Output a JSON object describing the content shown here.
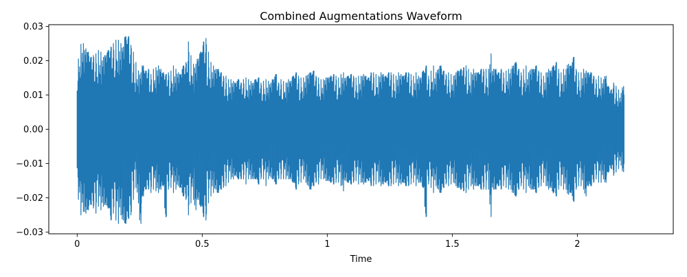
{
  "chart_data": {
    "type": "line",
    "title": "Combined Augmentations Waveform",
    "xlabel": "Time",
    "ylabel": "",
    "xlim": [
      -0.1135,
      2.3835
    ],
    "ylim": [
      -0.0305,
      0.0305
    ],
    "x_ticks": [
      0,
      0.5,
      1,
      1.5,
      2
    ],
    "x_tick_labels": [
      "0",
      "0.5",
      "1",
      "1.5",
      "2"
    ],
    "y_ticks": [
      -0.03,
      -0.02,
      -0.01,
      0.0,
      0.01,
      0.02,
      0.03
    ],
    "y_tick_labels": [
      "−0.03",
      "−0.02",
      "−0.01",
      "0.00",
      "0.01",
      "0.02",
      "0.03"
    ],
    "grid": false,
    "series": [
      {
        "color": "#1f77b4",
        "sample_spacing": 0.01,
        "envelope_max": [
          0.0205,
          0.0248,
          0.025,
          0.0235,
          0.0225,
          0.021,
          0.0215,
          0.022,
          0.023,
          0.0225,
          0.021,
          0.0215,
          0.023,
          0.024,
          0.025,
          0.026,
          0.026,
          0.025,
          0.024,
          0.027,
          0.027,
          0.0245,
          0.0225,
          0.0195,
          0.017,
          0.0165,
          0.0185,
          0.017,
          0.0175,
          0.016,
          0.0175,
          0.018,
          0.0185,
          0.0175,
          0.0165,
          0.016,
          0.0165,
          0.017,
          0.0185,
          0.0175,
          0.0165,
          0.016,
          0.0185,
          0.0195,
          0.0255,
          0.0215,
          0.019,
          0.019,
          0.0205,
          0.0225,
          0.0255,
          0.0265,
          0.0225,
          0.0195,
          0.0185,
          0.0175,
          0.0175,
          0.0165,
          0.0155,
          0.0155,
          0.0145,
          0.0145,
          0.014,
          0.0135,
          0.0145,
          0.0135,
          0.0145,
          0.015,
          0.0145,
          0.014,
          0.0135,
          0.0145,
          0.015,
          0.0135,
          0.014,
          0.0145,
          0.014,
          0.0135,
          0.0145,
          0.016,
          0.0135,
          0.0145,
          0.014,
          0.0135,
          0.0145,
          0.014,
          0.0155,
          0.0165,
          0.0155,
          0.015,
          0.015,
          0.0155,
          0.016,
          0.0165,
          0.017,
          0.0155,
          0.015,
          0.0145,
          0.0145,
          0.015,
          0.015,
          0.0155,
          0.016,
          0.0155,
          0.015,
          0.016,
          0.0165,
          0.015,
          0.0155,
          0.016,
          0.0155,
          0.015,
          0.0155,
          0.0155,
          0.016,
          0.0155,
          0.015,
          0.0165,
          0.0165,
          0.016,
          0.0155,
          0.0165,
          0.016,
          0.0155,
          0.0165,
          0.0165,
          0.016,
          0.0155,
          0.0165,
          0.016,
          0.0155,
          0.0165,
          0.0165,
          0.016,
          0.0155,
          0.0165,
          0.0155,
          0.015,
          0.017,
          0.0185,
          0.0155,
          0.017,
          0.0185,
          0.0165,
          0.0175,
          0.0185,
          0.017,
          0.016,
          0.0165,
          0.016,
          0.0155,
          0.0165,
          0.017,
          0.0175,
          0.018,
          0.0185,
          0.0175,
          0.0165,
          0.0175,
          0.0165,
          0.0165,
          0.0175,
          0.0175,
          0.0175,
          0.0175,
          0.022,
          0.0175,
          0.0175,
          0.0165,
          0.0175,
          0.0165,
          0.017,
          0.0175,
          0.0175,
          0.0185,
          0.0195,
          0.0175,
          0.0165,
          0.0175,
          0.0185,
          0.0165,
          0.0175,
          0.0175,
          0.0185,
          0.017,
          0.0165,
          0.0155,
          0.0165,
          0.0175,
          0.017,
          0.0185,
          0.0195,
          0.0175,
          0.0165,
          0.0175,
          0.0175,
          0.019,
          0.0185,
          0.021,
          0.0175,
          0.0165,
          0.0165,
          0.0175,
          0.017,
          0.0165,
          0.0165,
          0.0155,
          0.0145,
          0.0155,
          0.015,
          0.0145,
          0.0155,
          0.0125,
          0.0115,
          0.0135,
          0.0125,
          0.0115,
          0.0105,
          0.0125
        ],
        "envelope_min": [
          -0.0205,
          -0.025,
          -0.024,
          -0.0245,
          -0.0235,
          -0.022,
          -0.023,
          -0.0245,
          -0.0225,
          -0.0235,
          -0.0225,
          -0.022,
          -0.023,
          -0.0265,
          -0.0245,
          -0.0265,
          -0.0275,
          -0.025,
          -0.0265,
          -0.0275,
          -0.026,
          -0.025,
          -0.0205,
          -0.017,
          -0.0215,
          -0.0275,
          -0.0195,
          -0.0175,
          -0.0175,
          -0.0185,
          -0.0175,
          -0.018,
          -0.0185,
          -0.0175,
          -0.0165,
          -0.0255,
          -0.0175,
          -0.017,
          -0.0185,
          -0.0175,
          -0.0165,
          -0.017,
          -0.0195,
          -0.0205,
          -0.025,
          -0.0215,
          -0.0205,
          -0.0235,
          -0.0205,
          -0.0225,
          -0.0255,
          -0.0265,
          -0.0215,
          -0.0195,
          -0.0185,
          -0.0175,
          -0.0185,
          -0.0175,
          -0.017,
          -0.0165,
          -0.0155,
          -0.0145,
          -0.0145,
          -0.0135,
          -0.0145,
          -0.0145,
          -0.0145,
          -0.016,
          -0.0145,
          -0.0145,
          -0.0145,
          -0.0145,
          -0.016,
          -0.0145,
          -0.0145,
          -0.0165,
          -0.0145,
          -0.014,
          -0.0145,
          -0.016,
          -0.0145,
          -0.0145,
          -0.0145,
          -0.0145,
          -0.0145,
          -0.0145,
          -0.0155,
          -0.0175,
          -0.016,
          -0.0155,
          -0.0145,
          -0.0155,
          -0.0165,
          -0.0175,
          -0.0165,
          -0.0155,
          -0.016,
          -0.0145,
          -0.0145,
          -0.015,
          -0.015,
          -0.0155,
          -0.016,
          -0.0155,
          -0.0155,
          -0.0165,
          -0.018,
          -0.015,
          -0.0155,
          -0.016,
          -0.0155,
          -0.015,
          -0.016,
          -0.0155,
          -0.016,
          -0.0155,
          -0.015,
          -0.0165,
          -0.0165,
          -0.016,
          -0.0155,
          -0.0165,
          -0.016,
          -0.0155,
          -0.0165,
          -0.0165,
          -0.016,
          -0.0155,
          -0.0165,
          -0.016,
          -0.0155,
          -0.0165,
          -0.0165,
          -0.016,
          -0.0155,
          -0.0165,
          -0.0155,
          -0.0155,
          -0.017,
          -0.0255,
          -0.016,
          -0.017,
          -0.0185,
          -0.0165,
          -0.0175,
          -0.0185,
          -0.017,
          -0.016,
          -0.0165,
          -0.016,
          -0.0155,
          -0.0165,
          -0.017,
          -0.0175,
          -0.018,
          -0.0185,
          -0.0175,
          -0.0165,
          -0.0175,
          -0.0165,
          -0.0165,
          -0.0175,
          -0.0175,
          -0.0175,
          -0.0175,
          -0.0255,
          -0.0175,
          -0.0175,
          -0.0165,
          -0.0175,
          -0.0165,
          -0.017,
          -0.0175,
          -0.0175,
          -0.0185,
          -0.0195,
          -0.0175,
          -0.0165,
          -0.0175,
          -0.0185,
          -0.0165,
          -0.0175,
          -0.0175,
          -0.0185,
          -0.017,
          -0.0165,
          -0.0155,
          -0.0165,
          -0.0175,
          -0.017,
          -0.0185,
          -0.0195,
          -0.0175,
          -0.0165,
          -0.0175,
          -0.0175,
          -0.019,
          -0.0185,
          -0.021,
          -0.0175,
          -0.0165,
          -0.0165,
          -0.0175,
          -0.0195,
          -0.0165,
          -0.0165,
          -0.0155,
          -0.0145,
          -0.0155,
          -0.0155,
          -0.0145,
          -0.0155,
          -0.0125,
          -0.0115,
          -0.0135,
          -0.0125,
          -0.0115,
          -0.0105,
          -0.0125
        ]
      }
    ]
  }
}
